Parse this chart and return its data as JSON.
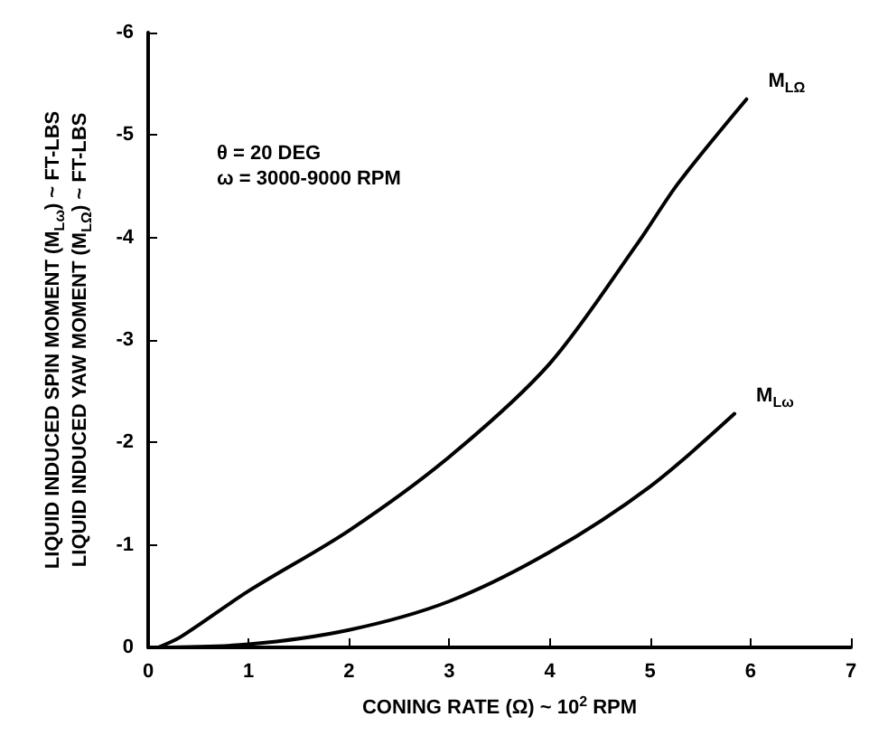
{
  "chart_data": {
    "type": "line",
    "xlabel": "CONING RATE (Ω) ~ 10$^{2}$ RPM",
    "ylabel": "LIQUID INDUCED SPIN MOMENT (M$_{Lω}$) ~ FT-LBS\nLIQUID INDUCED YAW MOMENT (M$_{LΩ}$) ~ FT-LBS",
    "annotations": [
      "θ = 20 DEG\nω = 3000-9000 RPM"
    ],
    "xlim": [
      0,
      7
    ],
    "xticks": [
      0,
      1,
      2,
      3,
      4,
      5,
      6,
      7
    ],
    "ylim": [
      0,
      -6
    ],
    "yticks": [
      0,
      -1,
      -2,
      -3,
      -4,
      -5,
      -6
    ],
    "grid": false,
    "marker": "none",
    "line_style": "solid",
    "series": [
      {
        "name": "M$_{LΩ}$",
        "color": "#000000",
        "x": [
          0.1,
          0.32,
          1,
          2,
          3,
          4,
          4.88,
          5.28,
          5.96
        ],
        "values": [
          0,
          -0.1,
          -0.55,
          -1.14,
          -1.86,
          -2.77,
          -3.95,
          -4.53,
          -5.35
        ]
      },
      {
        "name": "M$_{Lω}$",
        "color": "#000000",
        "x": [
          0.1,
          1,
          2,
          3,
          4,
          5,
          5.84
        ],
        "values": [
          0,
          -0.03,
          -0.17,
          -0.45,
          -0.93,
          -1.57,
          -2.28
        ]
      }
    ]
  }
}
